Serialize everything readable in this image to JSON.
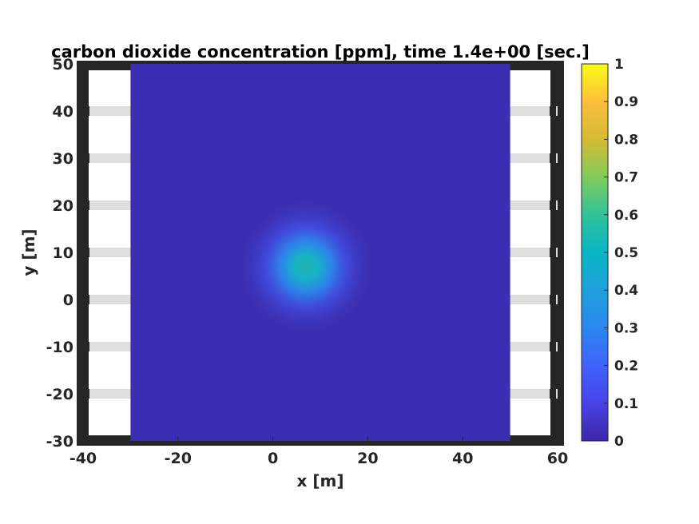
{
  "chart_data": {
    "type": "heatmap",
    "title": "carbon dioxide concentration [ppm], time 1.4e+00 [sec.]",
    "xlabel": "x [m]",
    "ylabel": "y [m]",
    "xlim": [
      -40,
      60
    ],
    "ylim": [
      -30,
      50
    ],
    "xticks": [
      -40,
      -20,
      0,
      20,
      40,
      60
    ],
    "yticks": [
      -30,
      -20,
      -10,
      0,
      10,
      20,
      30,
      40,
      50
    ],
    "field_extent": {
      "x": [
        -30,
        50
      ],
      "y": [
        -30,
        50
      ]
    },
    "plume": {
      "center_x": 7,
      "center_y": 7,
      "peak_value": 0.48
    },
    "street_stripes_y": [
      40,
      30,
      20,
      10,
      0,
      -10,
      -20
    ],
    "colormap": "parula",
    "colorbar": {
      "limits": [
        0,
        1
      ],
      "ticks": [
        "0",
        "0.1",
        "0.2",
        "0.3",
        "0.4",
        "0.5",
        "0.6",
        "0.7",
        "0.8",
        "0.9",
        "1"
      ]
    },
    "grid": false
  }
}
